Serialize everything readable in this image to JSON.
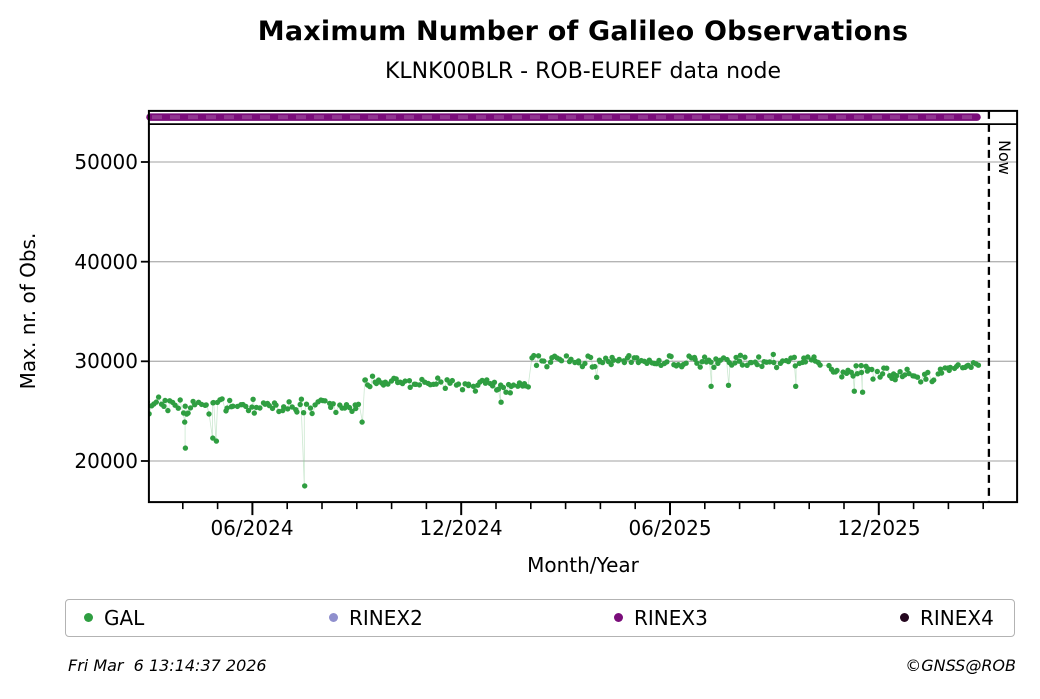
{
  "title": "Maximum Number of Galileo Observations",
  "subtitle": "KLNK00BLR - ROB-EUREF data node",
  "footer": {
    "timestamp": "Fri Mar  6 13:14:37 2026",
    "credit": "©GNSS@ROB"
  },
  "legend": {
    "items": [
      {
        "label": "GAL",
        "color": "#2f9e41"
      },
      {
        "label": "RINEX2",
        "color": "#8f8fcd"
      },
      {
        "label": "RINEX3",
        "color": "#7a0d7a"
      },
      {
        "label": "RINEX4",
        "color": "#24071f"
      }
    ]
  },
  "chart_data": {
    "type": "scatter",
    "title": "Maximum Number of Galileo Observations",
    "subtitle": "KLNK00BLR - ROB-EUREF data node",
    "xlabel": "Month/Year",
    "ylabel": "Max. nr. of Obs.",
    "x_range": [
      "2024-03-01",
      "2026-04-01"
    ],
    "ylim": [
      15900,
      55200
    ],
    "y_ticks": [
      20000,
      30000,
      40000,
      50000
    ],
    "x_major_ticks": [
      {
        "label": "06/2024",
        "date": "2024-06-01"
      },
      {
        "label": "12/2024",
        "date": "2024-12-01"
      },
      {
        "label": "06/2025",
        "date": "2025-06-01"
      },
      {
        "label": "12/2025",
        "date": "2025-12-01"
      }
    ],
    "grid": "horizontal-major",
    "legend_position": "bottom",
    "now_marker": {
      "date": "2026-03-06",
      "label": "Now"
    },
    "top_frame_line_value": 53800,
    "series": [
      {
        "name": "GAL",
        "color": "#2f9e41",
        "marker": "dot",
        "segments": [
          {
            "start": "2024-03-01",
            "end": "2024-09-05",
            "mean": 25500,
            "mean_end": 25500,
            "spread": 950
          },
          {
            "start": "2024-09-08",
            "end": "2025-01-31",
            "mean": 27900,
            "mean_end": 27400,
            "spread": 700
          },
          {
            "start": "2025-02-02",
            "end": "2025-10-14",
            "mean": 30100,
            "mean_end": 30000,
            "spread": 750
          },
          {
            "start": "2025-10-18",
            "end": "2026-01-20",
            "mean": 29100,
            "mean_end": 28500,
            "spread": 750
          },
          {
            "start": "2026-01-22",
            "end": "2026-02-28",
            "mean": 28900,
            "mean_end": 29900,
            "spread": 550
          }
        ],
        "outliers": [
          [
            "2024-04-03",
            23900
          ],
          [
            "2024-04-03",
            21300
          ],
          [
            "2024-04-27",
            22300
          ],
          [
            "2024-04-30",
            22000
          ],
          [
            "2024-07-16",
            17500
          ],
          [
            "2024-09-06",
            23900
          ],
          [
            "2025-01-05",
            25900
          ],
          [
            "2025-03-28",
            28400
          ],
          [
            "2025-07-07",
            27500
          ],
          [
            "2025-07-22",
            27600
          ],
          [
            "2025-09-20",
            27500
          ],
          [
            "2025-11-10",
            27000
          ],
          [
            "2025-11-17",
            26900
          ]
        ]
      },
      {
        "name": "RINEX3",
        "color": "#7a0d7a",
        "marker": "thick-line",
        "value": 54500,
        "start": "2024-03-01",
        "end": "2026-02-26"
      },
      {
        "name": "RINEX2",
        "color": "#8f8fcd",
        "marker": "dot",
        "points": []
      },
      {
        "name": "RINEX4",
        "color": "#24071f",
        "marker": "dot",
        "points": []
      }
    ]
  }
}
